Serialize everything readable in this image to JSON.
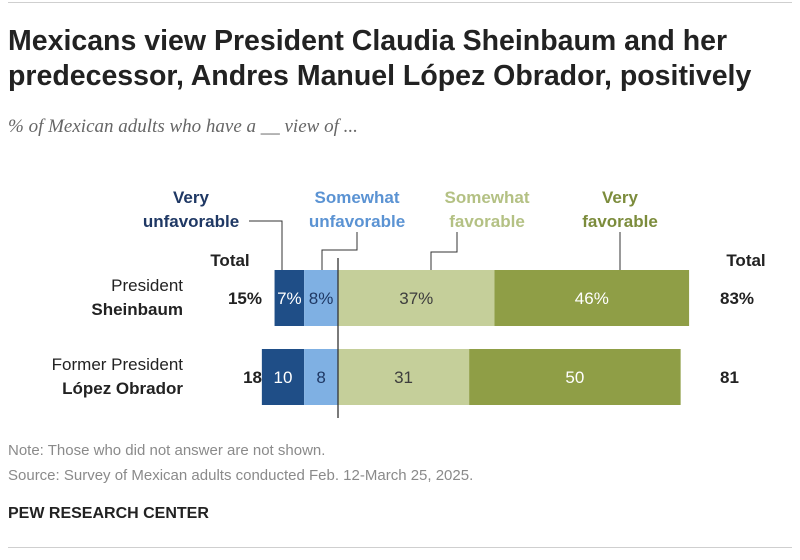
{
  "header": {
    "title": "Mexicans view President Claudia Sheinbaum and her predecessor, Andres Manuel López Obrador, positively",
    "subtitle": "% of Mexican adults who have a __ view of ..."
  },
  "footer": {
    "note": "Note: Those who did not answer are not shown.",
    "source": "Source: Survey of Mexican adults conducted Feb. 12-March 25, 2025.",
    "org": "PEW RESEARCH CENTER"
  },
  "chart_data": {
    "type": "bar",
    "orientation": "horizontal",
    "stacked": true,
    "diverging": true,
    "total_label_left": "Total",
    "total_label_right": "Total",
    "legend": [
      {
        "key": "very_unfavorable",
        "line1": "Very",
        "line2": "unfavorable",
        "color": "#1f4e87"
      },
      {
        "key": "somewhat_unfavorable",
        "line1": "Somewhat",
        "line2": "unfavorable",
        "color": "#7fb0e3"
      },
      {
        "key": "somewhat_favorable",
        "line1": "Somewhat",
        "line2": "favorable",
        "color": "#c5cf9a"
      },
      {
        "key": "very_favorable",
        "line1": "Very",
        "line2": "favorable",
        "color": "#8f9e46"
      }
    ],
    "categories": [
      {
        "line1": "President",
        "line2": "Sheinbaum"
      },
      {
        "line1": "Former President",
        "line2": "López Obrador"
      }
    ],
    "series": [
      {
        "name": "Very unfavorable",
        "values": [
          7,
          10
        ],
        "labels": [
          "7%",
          "10"
        ]
      },
      {
        "name": "Somewhat unfavorable",
        "values": [
          8,
          8
        ],
        "labels": [
          "8%",
          "8"
        ]
      },
      {
        "name": "Somewhat favorable",
        "values": [
          37,
          31
        ],
        "labels": [
          "37%",
          "31"
        ]
      },
      {
        "name": "Very favorable",
        "values": [
          46,
          50
        ],
        "labels": [
          "46%",
          "50"
        ]
      }
    ],
    "totals_unfavorable": {
      "values": [
        15,
        18
      ],
      "labels": [
        "15%",
        "18"
      ]
    },
    "totals_favorable": {
      "values": [
        83,
        81
      ],
      "labels": [
        "83%",
        "81"
      ]
    }
  }
}
